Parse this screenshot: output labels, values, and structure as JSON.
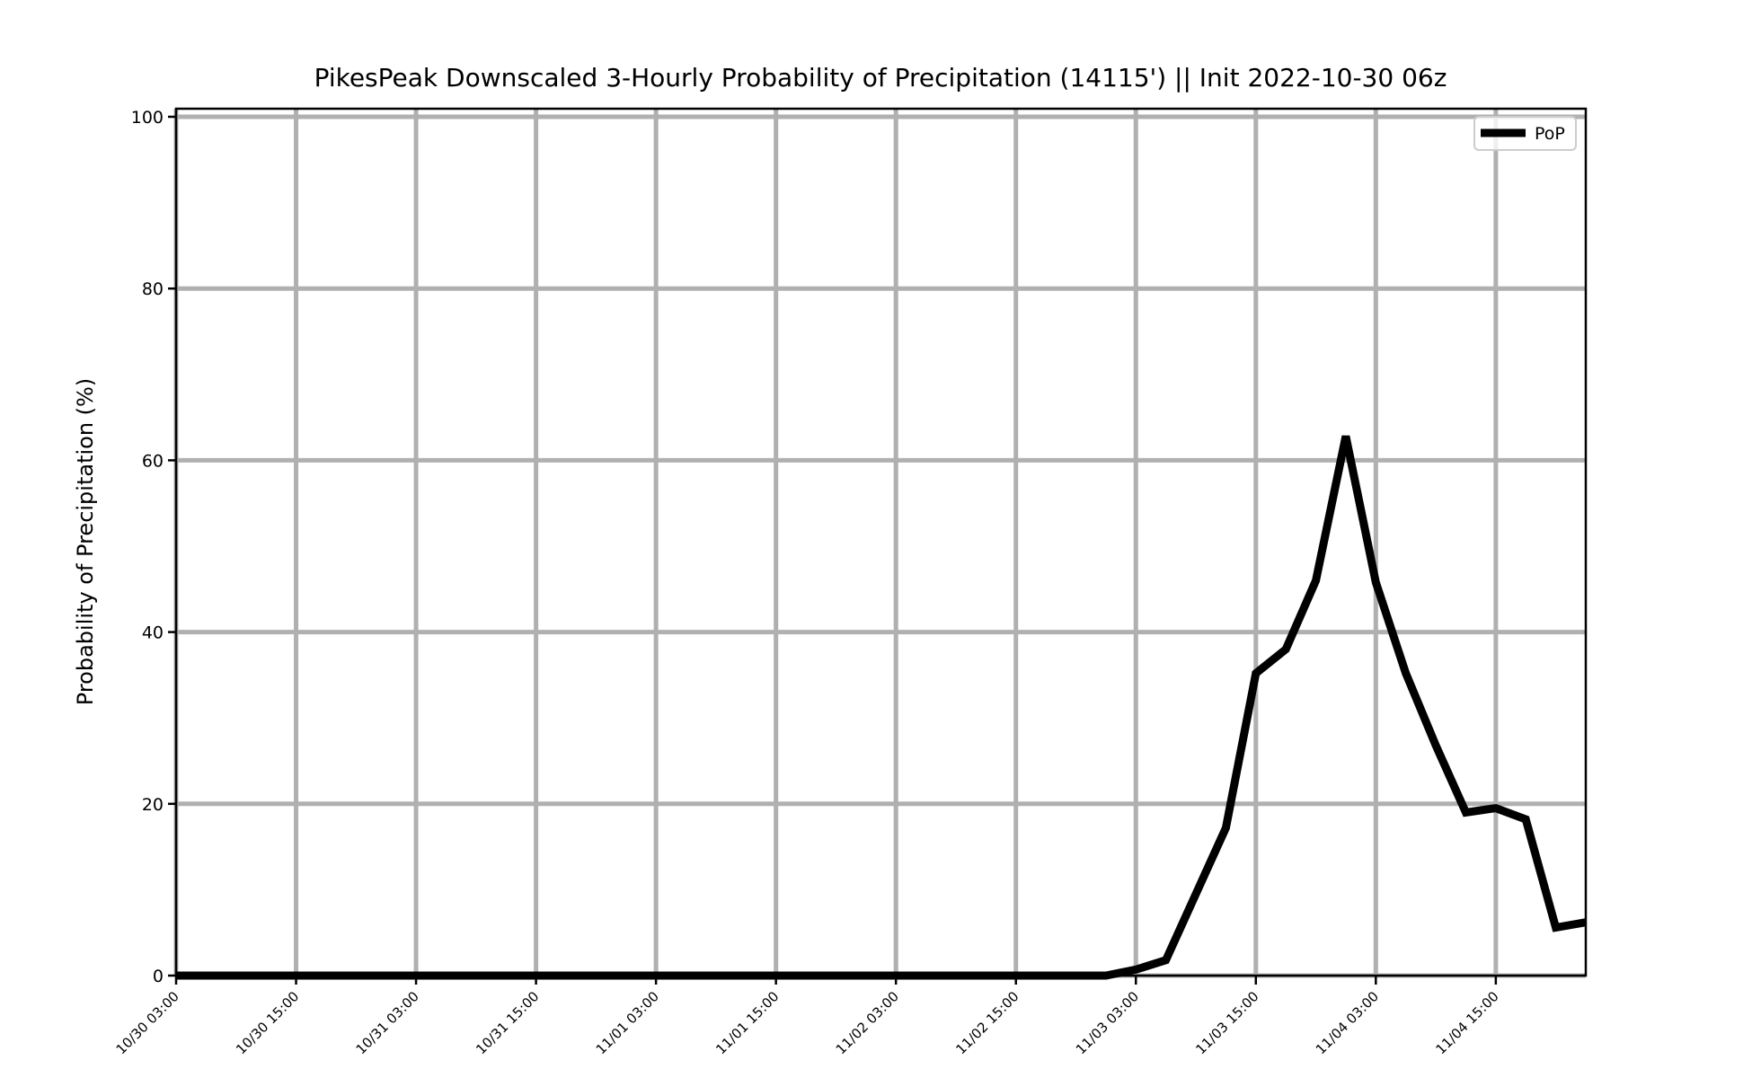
{
  "chart_data": {
    "type": "line",
    "title": "PikesPeak Downscaled 3-Hourly Probability of Precipitation (14115') || Init 2022-10-30 06z",
    "xlabel": "",
    "ylabel": "Probability of Precipitation (%)",
    "ylim": [
      0,
      100
    ],
    "yticks": [
      0,
      20,
      40,
      60,
      80,
      100
    ],
    "xticks": [
      "10/30 03:00",
      "10/30 15:00",
      "10/31 03:00",
      "10/31 15:00",
      "11/01 03:00",
      "11/01 15:00",
      "11/02 03:00",
      "11/02 15:00",
      "11/03 03:00",
      "11/03 15:00",
      "11/04 03:00",
      "11/04 15:00"
    ],
    "xlim": [
      "10/30 03:00",
      "11/05 00:00"
    ],
    "grid": true,
    "legend": "upper-right",
    "x": [
      "10/30 03:00",
      "10/30 06:00",
      "10/30 09:00",
      "10/30 12:00",
      "10/30 15:00",
      "10/30 18:00",
      "10/30 21:00",
      "10/31 00:00",
      "10/31 03:00",
      "10/31 06:00",
      "10/31 09:00",
      "10/31 12:00",
      "10/31 15:00",
      "10/31 18:00",
      "10/31 21:00",
      "11/01 00:00",
      "11/01 03:00",
      "11/01 06:00",
      "11/01 09:00",
      "11/01 12:00",
      "11/01 15:00",
      "11/01 18:00",
      "11/01 21:00",
      "11/02 00:00",
      "11/02 03:00",
      "11/02 06:00",
      "11/02 09:00",
      "11/02 12:00",
      "11/02 15:00",
      "11/02 18:00",
      "11/02 21:00",
      "11/03 00:00",
      "11/03 03:00",
      "11/03 06:00",
      "11/03 09:00",
      "11/03 12:00",
      "11/03 15:00",
      "11/03 18:00",
      "11/03 21:00",
      "11/04 00:00",
      "11/04 03:00",
      "11/04 06:00",
      "11/04 09:00",
      "11/04 12:00",
      "11/04 15:00",
      "11/04 18:00",
      "11/04 21:00",
      "11/05 00:00"
    ],
    "series": [
      {
        "name": "PoP",
        "color": "#000000",
        "values": [
          0,
          0,
          0,
          0,
          0,
          0,
          0,
          0,
          0,
          0,
          0,
          0,
          0,
          0,
          0,
          0,
          0,
          0,
          0,
          0,
          0,
          0,
          0,
          0,
          0,
          0,
          0,
          0,
          0,
          0,
          0,
          0,
          0.7,
          1.8,
          9.5,
          17.2,
          35.2,
          38.0,
          46.0,
          62.8,
          45.8,
          35.2,
          26.8,
          19.0,
          19.5,
          18.2,
          5.6,
          6.2
        ]
      }
    ]
  }
}
